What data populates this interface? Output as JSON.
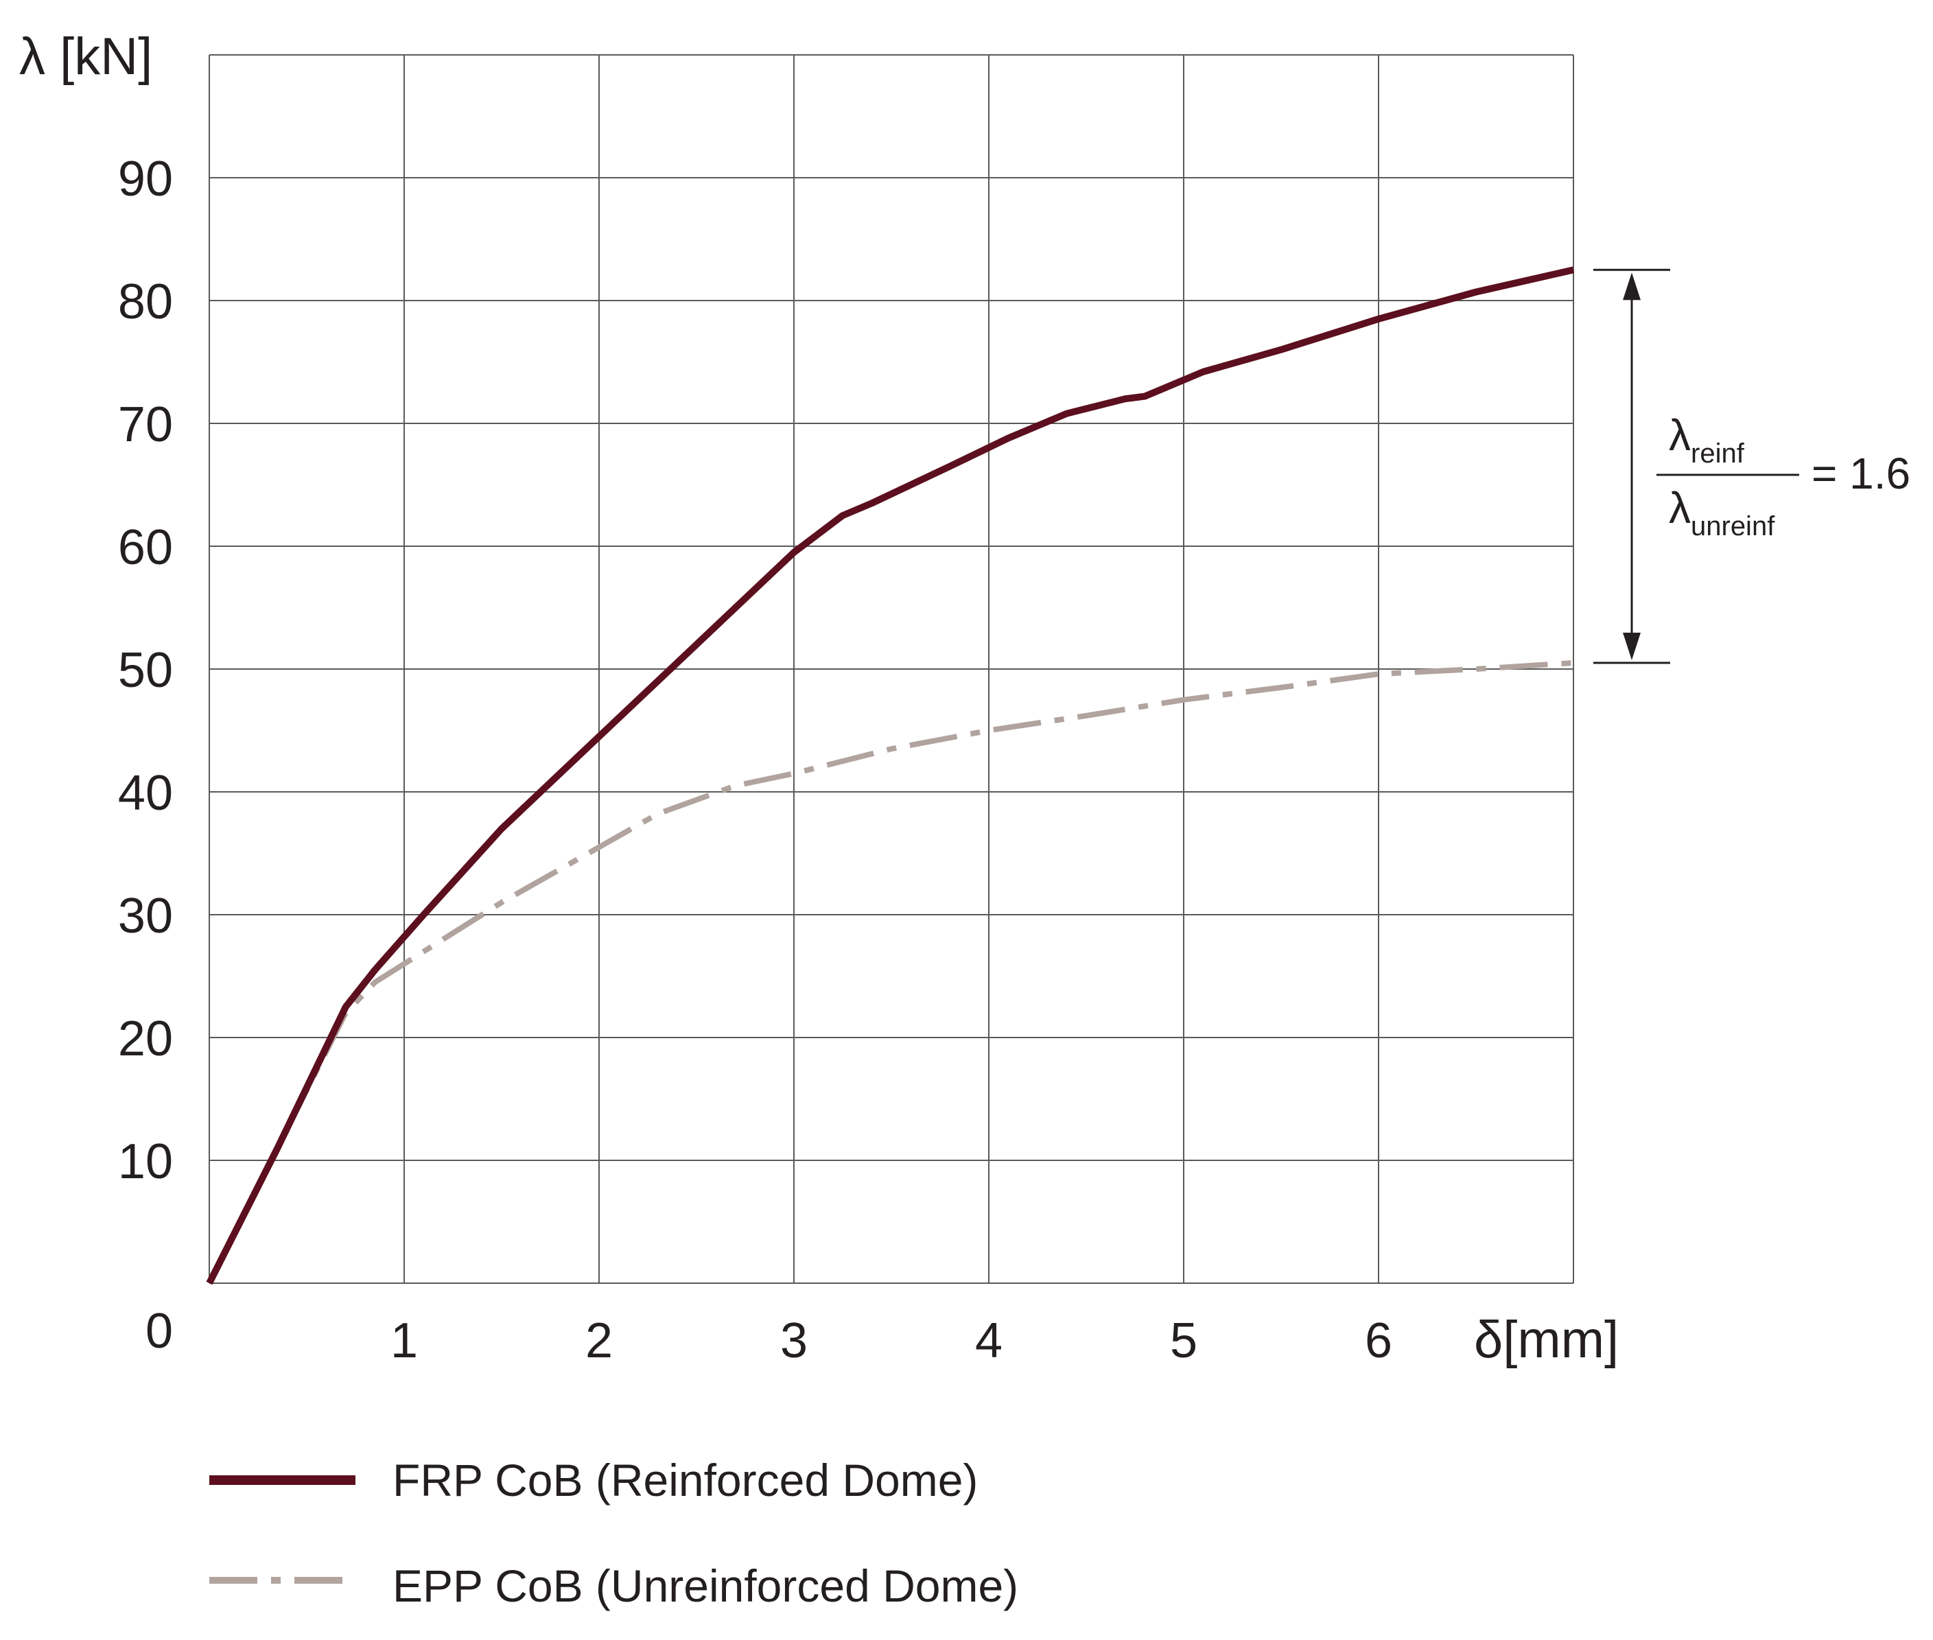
{
  "chart_data": {
    "type": "line",
    "title": "",
    "xlabel": "δ[mm]",
    "ylabel": "λ [kN]",
    "xlim": [
      0,
      7
    ],
    "ylim": [
      0,
      100
    ],
    "x_ticks": [
      1,
      2,
      3,
      4,
      5,
      6
    ],
    "y_ticks": [
      10,
      20,
      30,
      40,
      50,
      60,
      70,
      80,
      90
    ],
    "origin_label": "0",
    "grid": true,
    "legend_position": "bottom",
    "series": [
      {
        "name": "FRP CoB (Reinforced Dome)",
        "color": "#5c0f1e",
        "style": "solid",
        "x": [
          0,
          0.35,
          0.7,
          0.85,
          1.1,
          1.5,
          2.0,
          2.5,
          3.0,
          3.25,
          3.4,
          3.8,
          4.1,
          4.4,
          4.7,
          4.8,
          5.1,
          5.5,
          6.0,
          6.5,
          7.0
        ],
        "y": [
          0,
          11,
          22.5,
          25.5,
          30,
          37,
          44.5,
          52,
          59.5,
          62.5,
          63.5,
          66.5,
          68.8,
          70.8,
          72,
          72.2,
          74.2,
          76,
          78.5,
          80.7,
          82.5
        ]
      },
      {
        "name": "EPP CoB (Unreinforced Dome)",
        "color": "#b1a39e",
        "style": "dash-dot",
        "x": [
          0,
          0.35,
          0.7,
          0.85,
          1.0,
          1.5,
          2.0,
          2.3,
          2.7,
          3.0,
          3.5,
          4.0,
          4.5,
          5.0,
          5.5,
          6.0,
          6.5,
          7.0
        ],
        "y": [
          0,
          11,
          22,
          24.5,
          26,
          31,
          35.5,
          38.2,
          40.5,
          41.5,
          43.5,
          45,
          46.2,
          47.5,
          48.5,
          49.6,
          50,
          50.5
        ]
      }
    ],
    "annotation": {
      "numerator": "λ",
      "numerator_sub": "reinf",
      "denominator": "λ",
      "denominator_sub": "unreinf",
      "equals": "= 1.6",
      "from_y": 50.5,
      "to_y": 82.5
    }
  }
}
